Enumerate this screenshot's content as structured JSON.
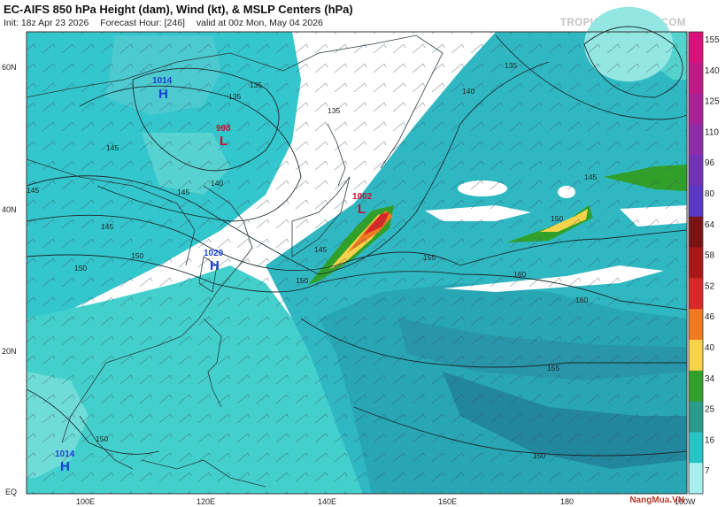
{
  "header": {
    "title": "EC-AIFS 850 hPa Height (dam), Wind (kt), & MSLP Centers (hPa)",
    "init": "Init: 18z Apr 23 2026",
    "forecast_hour": "Forecast Hour: [246]",
    "valid": "valid at 00z Mon, May 04 2026",
    "brand": "TROPICALTIDBITS.COM"
  },
  "map": {
    "lat_labels": [
      "60N",
      "40N",
      "20N",
      "EQ"
    ],
    "lon_labels": [
      "100E",
      "120E",
      "140E",
      "160E",
      "180",
      "160W"
    ],
    "contour_labels": [
      "135",
      "135",
      "135",
      "140",
      "140",
      "145",
      "145",
      "145",
      "145",
      "145",
      "150",
      "150",
      "150",
      "150",
      "150",
      "150",
      "155",
      "155",
      "160",
      "160",
      "135",
      "145"
    ],
    "pressure_centers": [
      {
        "type": "H",
        "pressure": "1014",
        "color": "#1a3fcf"
      },
      {
        "type": "L",
        "pressure": "998",
        "color": "#c8102e"
      },
      {
        "type": "L",
        "pressure": "1002",
        "color": "#c8102e"
      },
      {
        "type": "H",
        "pressure": "1020",
        "color": "#1a3fcf"
      },
      {
        "type": "H",
        "pressure": "1014",
        "color": "#1a3fcf"
      }
    ]
  },
  "colorbar": {
    "labels": [
      "155",
      "140",
      "125",
      "110",
      "96",
      "80",
      "64",
      "58",
      "52",
      "46",
      "40",
      "34",
      "25",
      "16",
      "7"
    ],
    "colors": [
      "#d9117a",
      "#c01a86",
      "#a92296",
      "#8c2ca6",
      "#7232b6",
      "#5a38c4",
      "#7a1414",
      "#a81818",
      "#d82828",
      "#f07a22",
      "#f7d34a",
      "#31a02a",
      "#2a9a8a",
      "#26c4c4",
      "#a8f0f0"
    ]
  },
  "watermark": "NangMua.VN"
}
